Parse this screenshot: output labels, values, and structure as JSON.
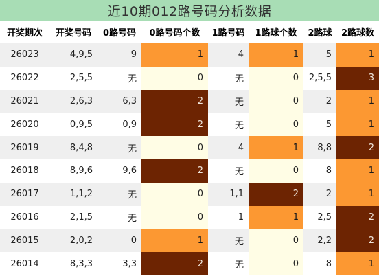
{
  "title": "近10期012路号码分析数据",
  "headers": [
    "开奖期次",
    "开奖号码",
    "0路号码",
    "0路号码个数",
    "1路号码",
    "1路球个数",
    "2路球",
    "2路球数"
  ],
  "rows": [
    {
      "period": "26023",
      "numbers": "4,9,5",
      "r0": "9",
      "r0_count": "1",
      "r1": "4",
      "r1_count": "1",
      "r2": "5",
      "r2_count": "1"
    },
    {
      "period": "26022",
      "numbers": "2,5,5",
      "r0": "无",
      "r0_count": "0",
      "r1": "无",
      "r1_count": "0",
      "r2": "2,5,5",
      "r2_count": "3"
    },
    {
      "period": "26021",
      "numbers": "2,6,3",
      "r0": "6,3",
      "r0_count": "2",
      "r1": "无",
      "r1_count": "0",
      "r2": "2",
      "r2_count": "1"
    },
    {
      "period": "26020",
      "numbers": "0,9,5",
      "r0": "0,9",
      "r0_count": "2",
      "r1": "无",
      "r1_count": "0",
      "r2": "5",
      "r2_count": "1"
    },
    {
      "period": "26019",
      "numbers": "8,4,8",
      "r0": "无",
      "r0_count": "0",
      "r1": "4",
      "r1_count": "1",
      "r2": "8,8",
      "r2_count": "2"
    },
    {
      "period": "26018",
      "numbers": "8,9,6",
      "r0": "9,6",
      "r0_count": "2",
      "r1": "无",
      "r1_count": "0",
      "r2": "8",
      "r2_count": "1"
    },
    {
      "period": "26017",
      "numbers": "1,1,2",
      "r0": "无",
      "r0_count": "0",
      "r1": "1,1",
      "r1_count": "2",
      "r2": "2",
      "r2_count": "1"
    },
    {
      "period": "26016",
      "numbers": "2,1,5",
      "r0": "无",
      "r0_count": "0",
      "r1": "1",
      "r1_count": "1",
      "r2": "2,5",
      "r2_count": "2"
    },
    {
      "period": "26015",
      "numbers": "2,0,2",
      "r0": "0",
      "r0_count": "1",
      "r1": "无",
      "r1_count": "0",
      "r2": "2,2",
      "r2_count": "2"
    },
    {
      "period": "26014",
      "numbers": "8,3,3",
      "r0": "3,3",
      "r0_count": "2",
      "r1": "无",
      "r1_count": "0",
      "r2": "8",
      "r2_count": "1"
    }
  ],
  "colors": {
    "title_bg": "#a8ddb5",
    "count0": "#fffde5",
    "count1": "#fc9832",
    "count_high": "#6d2402",
    "odd_row": "#efefef"
  }
}
